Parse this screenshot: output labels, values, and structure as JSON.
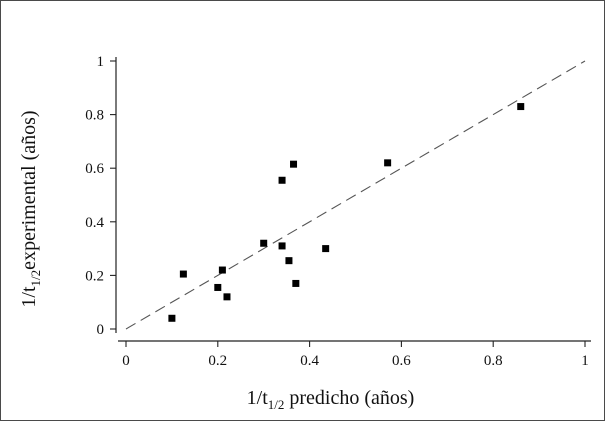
{
  "chart_data": {
    "type": "scatter",
    "title": "",
    "xlabel": {
      "prefix": "1/t",
      "sub": "1/2",
      "suffix": " predicho (años)"
    },
    "ylabel": {
      "prefix": "1/t",
      "sub": "1/2",
      "suffix": "experimental (años)"
    },
    "xlim": [
      0,
      1
    ],
    "ylim": [
      0,
      1
    ],
    "xticks": [
      0,
      0.2,
      0.4,
      0.6,
      0.8,
      1
    ],
    "yticks": [
      0,
      0.2,
      0.4,
      0.6,
      0.8,
      1
    ],
    "xtick_labels": [
      "0",
      "0.2",
      "0.4",
      "0.6",
      "0.8",
      "1"
    ],
    "ytick_labels": [
      "0",
      "0.2",
      "0.4",
      "0.6",
      "0.8",
      "1"
    ],
    "grid": false,
    "series": [
      {
        "marker": "square",
        "color": "#000000",
        "points": [
          {
            "x": 0.1,
            "y": 0.04
          },
          {
            "x": 0.125,
            "y": 0.205
          },
          {
            "x": 0.2,
            "y": 0.155
          },
          {
            "x": 0.21,
            "y": 0.22
          },
          {
            "x": 0.22,
            "y": 0.12
          },
          {
            "x": 0.3,
            "y": 0.32
          },
          {
            "x": 0.34,
            "y": 0.31
          },
          {
            "x": 0.34,
            "y": 0.555
          },
          {
            "x": 0.355,
            "y": 0.255
          },
          {
            "x": 0.365,
            "y": 0.615
          },
          {
            "x": 0.37,
            "y": 0.17
          },
          {
            "x": 0.435,
            "y": 0.3
          },
          {
            "x": 0.57,
            "y": 0.62
          },
          {
            "x": 0.86,
            "y": 0.83
          }
        ]
      }
    ],
    "reference_line": {
      "style": "dashed",
      "color": "#555555",
      "x": [
        0,
        1
      ],
      "y": [
        0,
        1
      ]
    }
  }
}
